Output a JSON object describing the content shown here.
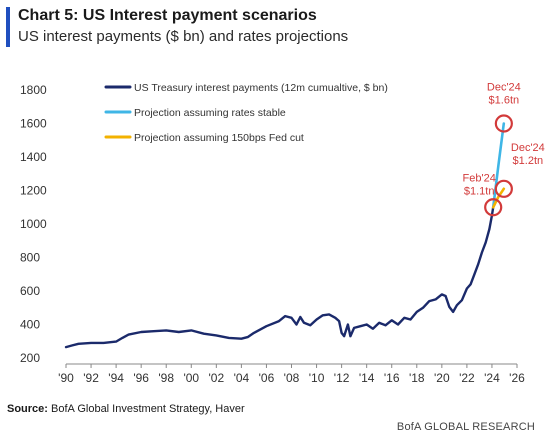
{
  "header": {
    "title": "Chart 5: US Interest payment scenarios",
    "subtitle": "US interest payments ($ bn) and rates projections"
  },
  "footer": {
    "source_label": "Source:",
    "source_text": "BofA Global Investment Strategy, Haver",
    "brand": "BofA GLOBAL RESEARCH"
  },
  "chart_data": {
    "type": "line",
    "title": "Chart 5: US Interest payment scenarios",
    "subtitle": "US interest payments ($ bn) and rates projections",
    "xlabel": "",
    "ylabel": "",
    "xlim": [
      1990,
      2026
    ],
    "ylim": [
      200,
      1800
    ],
    "x_ticks": [
      1990,
      1992,
      1994,
      1996,
      1998,
      2000,
      2002,
      2004,
      2006,
      2008,
      2010,
      2012,
      2014,
      2016,
      2018,
      2020,
      2022,
      2024,
      2026
    ],
    "x_tick_labels": [
      "'90",
      "'92",
      "'94",
      "'96",
      "'98",
      "'00",
      "'02",
      "'04",
      "'06",
      "'08",
      "'10",
      "'12",
      "'14",
      "'16",
      "'18",
      "'20",
      "'22",
      "'24",
      "'26"
    ],
    "y_ticks": [
      200,
      400,
      600,
      800,
      1000,
      1200,
      1400,
      1600,
      1800
    ],
    "y_tick_labels": [
      "200",
      "400",
      "600",
      "800",
      "1000",
      "1200",
      "1400",
      "1600",
      "1800"
    ],
    "grid": false,
    "legend_position": "top-left",
    "series": [
      {
        "name": "US Treasury interest payments (12m cumualtive, $ bn)",
        "color": "#1b2a6b",
        "x": [
          1990.0,
          1990.5,
          1991.0,
          1992.0,
          1993.0,
          1994.0,
          1994.5,
          1995.0,
          1996.0,
          1997.0,
          1998.0,
          1999.0,
          2000.0,
          2001.0,
          2002.0,
          2003.0,
          2004.0,
          2004.5,
          2005.0,
          2006.0,
          2007.0,
          2007.5,
          2008.0,
          2008.4,
          2008.7,
          2009.0,
          2009.5,
          2010.0,
          2010.5,
          2011.0,
          2011.5,
          2011.8,
          2012.0,
          2012.2,
          2012.5,
          2012.7,
          2013.0,
          2013.5,
          2014.0,
          2014.5,
          2015.0,
          2015.5,
          2016.0,
          2016.5,
          2017.0,
          2017.5,
          2018.0,
          2018.5,
          2019.0,
          2019.5,
          2020.0,
          2020.3,
          2020.6,
          2020.9,
          2021.2,
          2021.6,
          2022.0,
          2022.3,
          2022.6,
          2022.9,
          2023.2,
          2023.5,
          2023.8,
          2024.0,
          2024.1
        ],
        "y": [
          265,
          275,
          285,
          290,
          290,
          298,
          320,
          340,
          355,
          360,
          365,
          355,
          365,
          345,
          335,
          320,
          315,
          325,
          350,
          390,
          420,
          450,
          440,
          400,
          445,
          410,
          395,
          430,
          455,
          460,
          440,
          420,
          350,
          330,
          400,
          330,
          380,
          390,
          400,
          375,
          410,
          395,
          425,
          400,
          440,
          430,
          475,
          500,
          540,
          550,
          580,
          570,
          505,
          475,
          515,
          545,
          615,
          640,
          700,
          760,
          830,
          890,
          970,
          1050,
          1100
        ]
      },
      {
        "name": "Projection assuming rates stable",
        "color": "#3fb6e6",
        "x": [
          2024.1,
          2024.5,
          2024.95
        ],
        "y": [
          1100,
          1340,
          1600
        ]
      },
      {
        "name": "Projection assuming 150bps Fed cut",
        "color": "#f3b200",
        "x": [
          2024.1,
          2024.5,
          2024.95
        ],
        "y": [
          1100,
          1160,
          1210
        ]
      }
    ],
    "annotations": [
      {
        "lines": [
          "Dec'24",
          "$1.6tn"
        ],
        "x": 2024.95,
        "y": 1600
      },
      {
        "lines": [
          "Dec'24",
          "$1.2tn"
        ],
        "x": 2024.95,
        "y": 1210
      },
      {
        "lines": [
          "Feb'24",
          "$1.1tn"
        ],
        "x": 2024.1,
        "y": 1100
      }
    ],
    "annotation_color": "#d23a3a"
  }
}
